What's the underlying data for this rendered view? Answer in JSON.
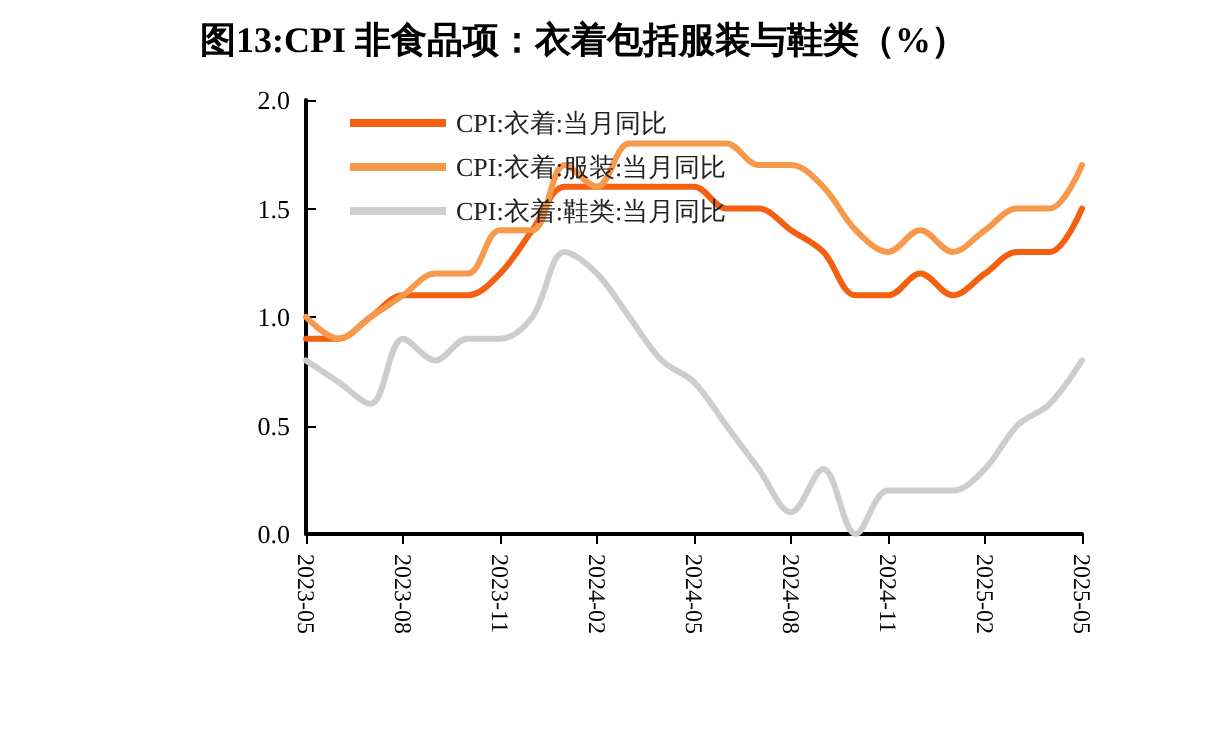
{
  "chart_data": {
    "type": "line",
    "title": "图13:CPI 非食品项：衣着包括服装与鞋类（%）",
    "categories": [
      "2023-05",
      null,
      null,
      "2023-08",
      null,
      null,
      "2023-11",
      null,
      null,
      "2024-02",
      null,
      null,
      "2024-05",
      null,
      null,
      "2024-08",
      null,
      null,
      "2024-11",
      null,
      null,
      "2025-02",
      null,
      null,
      "2025-05"
    ],
    "series": [
      {
        "name": "CPI:衣着:当月同比",
        "color": "#f4600f",
        "values": [
          0.9,
          0.9,
          1.0,
          1.1,
          1.1,
          1.1,
          1.2,
          1.4,
          1.6,
          1.6,
          1.6,
          1.6,
          1.6,
          1.5,
          1.5,
          1.4,
          1.3,
          1.1,
          1.1,
          1.2,
          1.1,
          1.2,
          1.3,
          1.3,
          1.5
        ]
      },
      {
        "name": "CPI:衣着:服装:当月同比",
        "color": "#f7994a",
        "values": [
          1.0,
          0.9,
          1.0,
          1.1,
          1.2,
          1.2,
          1.4,
          1.4,
          1.7,
          1.6,
          1.8,
          1.8,
          1.8,
          1.8,
          1.7,
          1.7,
          1.6,
          1.4,
          1.3,
          1.4,
          1.3,
          1.4,
          1.5,
          1.5,
          1.7
        ]
      },
      {
        "name": "CPI:衣着:鞋类:当月同比",
        "color": "#cdcdcd",
        "values": [
          0.8,
          0.7,
          0.6,
          0.9,
          0.8,
          0.9,
          0.9,
          1.0,
          1.3,
          1.2,
          1.0,
          0.8,
          0.7,
          0.5,
          0.3,
          0.1,
          0.3,
          0.0,
          0.2,
          0.2,
          0.2,
          0.3,
          0.5,
          0.6,
          0.8
        ]
      }
    ],
    "ylim": [
      0,
      2
    ],
    "yticks": [
      {
        "value": 0,
        "label": "0.0"
      },
      {
        "value": 0.5,
        "label": "0.5"
      },
      {
        "value": 1,
        "label": "1.0"
      },
      {
        "value": 1.5,
        "label": "1.5"
      },
      {
        "value": 2,
        "label": "2.0"
      }
    ],
    "grid": false,
    "legend": "top left",
    "marker": "none",
    "line_style": "solid"
  }
}
